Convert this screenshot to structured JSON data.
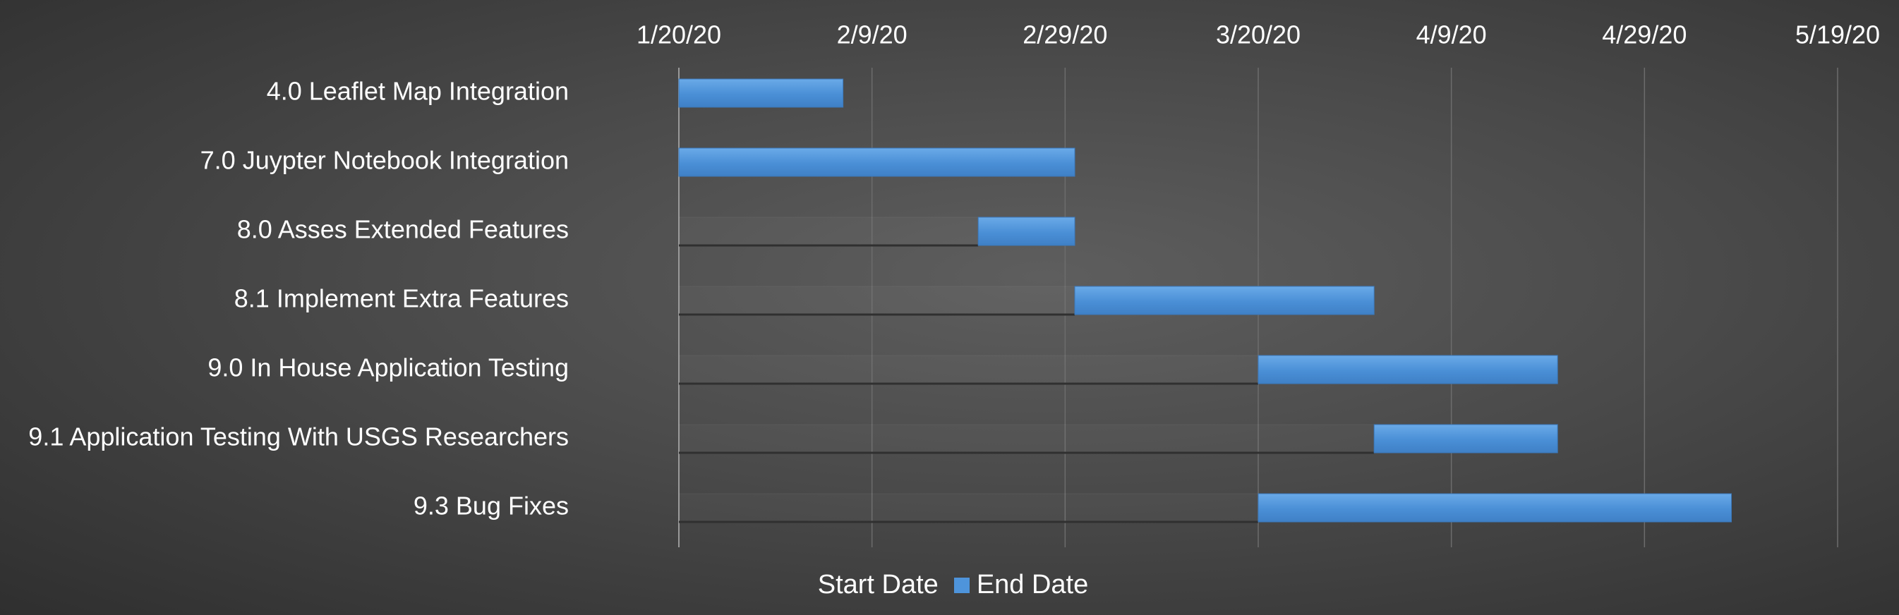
{
  "chart_data": {
    "type": "bar",
    "orientation": "horizontal",
    "stacked": true,
    "title": "",
    "xlabel": "",
    "ylabel": "",
    "x_axis_position": "top",
    "x_ticks": [
      "1/20/20",
      "2/9/20",
      "2/29/20",
      "3/20/20",
      "4/9/20",
      "4/29/20",
      "5/19/20"
    ],
    "xlim": [
      "2020-01-20",
      "2020-05-19"
    ],
    "grid": true,
    "legend_position": "bottom",
    "categories": [
      "4.0 Leaflet Map Integration",
      "7.0 Juypter Notebook Integration",
      "8.0 Asses Extended Features",
      "8.1 Implement Extra Features",
      "9.0 In House Application Testing",
      "9.1 Application Testing With USGS Researchers",
      "9.3 Bug Fixes"
    ],
    "series": [
      {
        "name": "Start Date",
        "color": "transparent",
        "values": [
          "2020-01-20",
          "2020-01-20",
          "2020-02-20",
          "2020-03-01",
          "2020-03-20",
          "2020-04-01",
          "2020-03-20"
        ]
      },
      {
        "name": "End Date",
        "color": "#4e94db",
        "values": [
          "2020-02-06",
          "2020-03-01",
          "2020-03-01",
          "2020-04-01",
          "2020-04-20",
          "2020-04-20",
          "2020-05-08"
        ]
      }
    ]
  },
  "legend": {
    "start_label": "Start Date",
    "end_label": "End Date"
  }
}
